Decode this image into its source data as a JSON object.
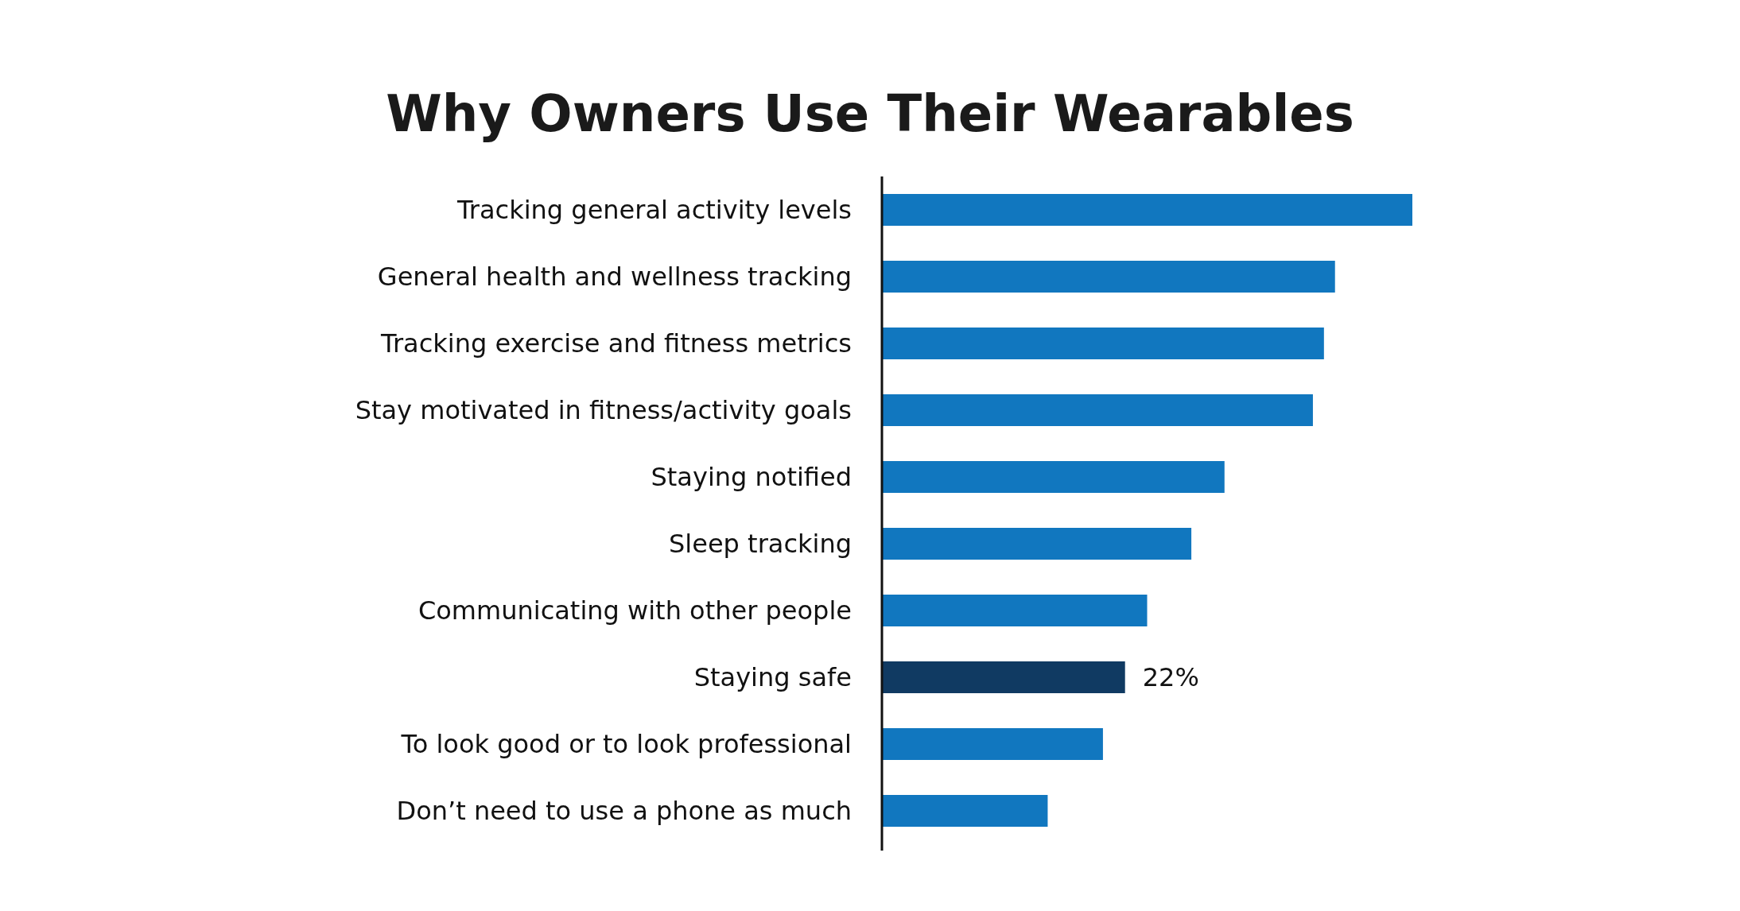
{
  "chart_data": {
    "type": "bar",
    "orientation": "horizontal",
    "title": "Why Owners Use Their Wearables",
    "categories": [
      "Tracking general activity levels",
      "General health and wellness tracking",
      "Tracking exercise and fitness metrics",
      "Stay motivated in fitness/activity goals",
      "Staying notified",
      "Sleep tracking",
      "Communicating with other people",
      "Staying safe",
      "To look good or to look professional",
      "Don’t need to use a phone as much"
    ],
    "values": [
      48,
      41,
      40,
      39,
      31,
      28,
      24,
      22,
      20,
      15
    ],
    "colors": [
      "#1177bf",
      "#1177bf",
      "#1177bf",
      "#1177bf",
      "#1177bf",
      "#1177bf",
      "#1177bf",
      "#103a62",
      "#1177bf",
      "#1177bf"
    ],
    "value_labels": [
      null,
      null,
      null,
      null,
      null,
      null,
      null,
      "22%",
      null,
      null
    ]
  }
}
